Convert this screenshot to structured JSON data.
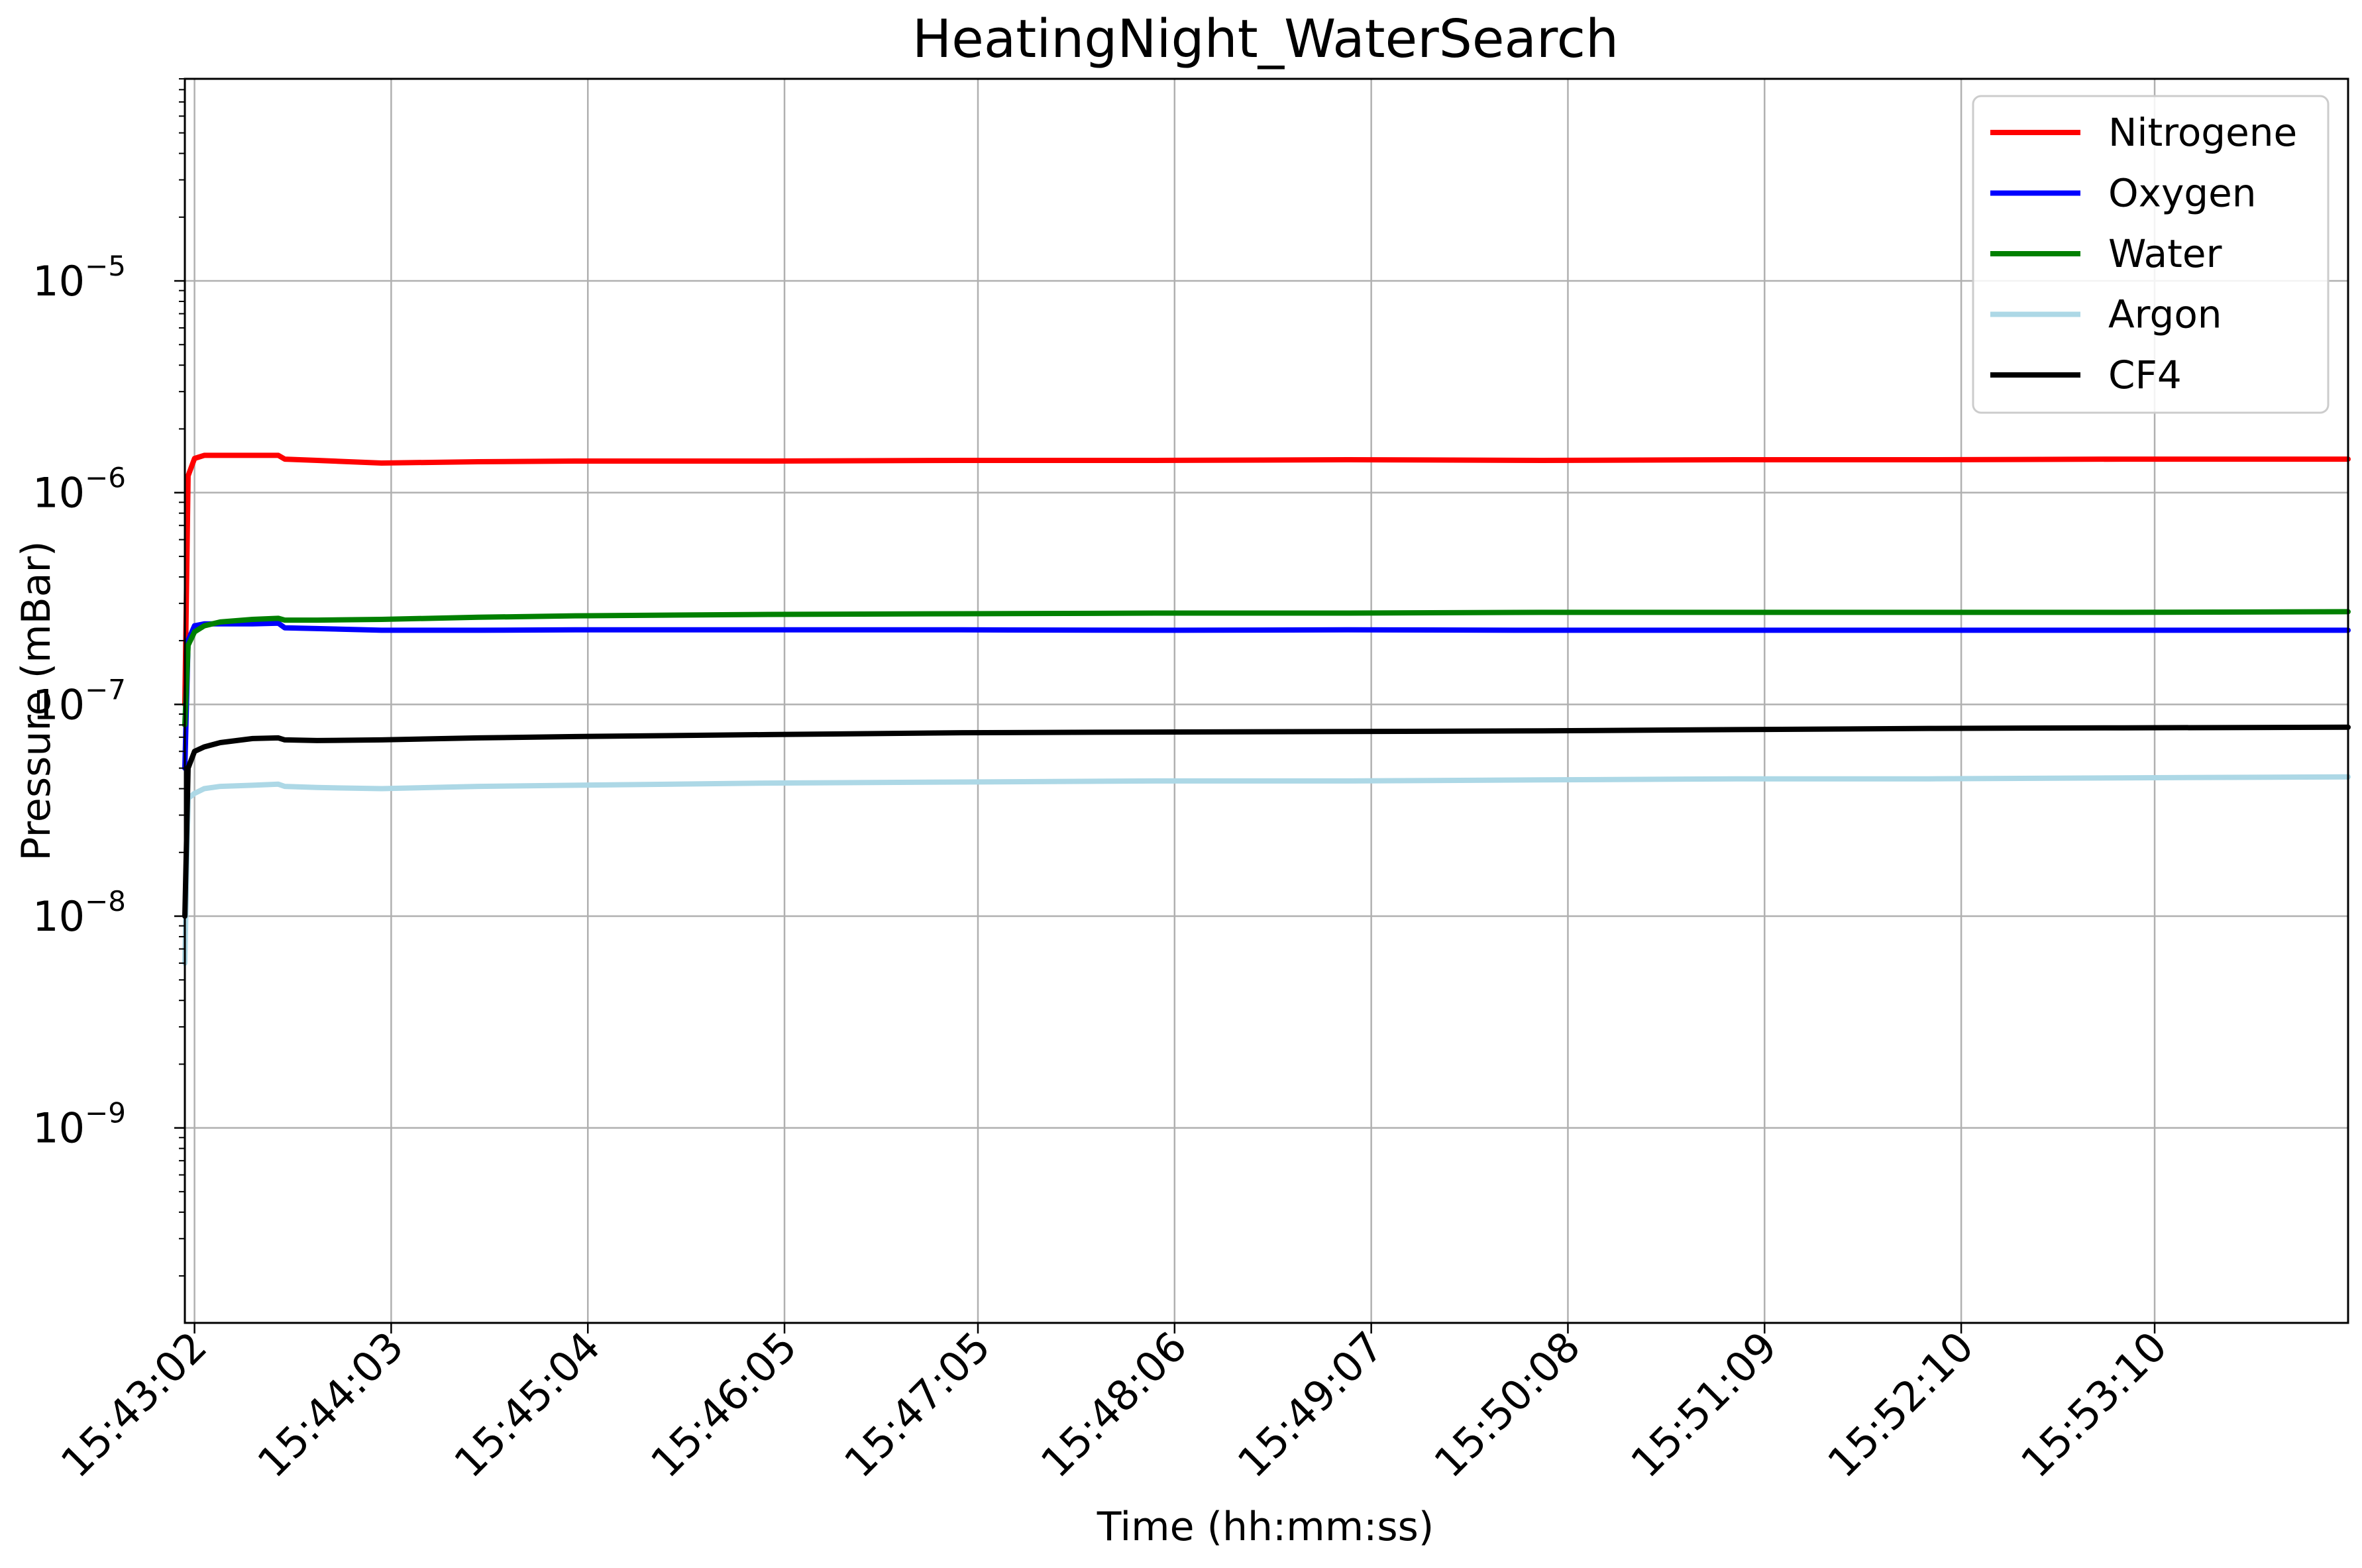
{
  "chart_data": {
    "type": "line",
    "title": "HeatingNight_WaterSearch",
    "xlabel": "Time (hh:mm:ss)",
    "ylabel": "Pressure (mBar)",
    "yscale": "log",
    "ylim": [
      1.2e-10,
      9e-05
    ],
    "xlim": [
      "15:42:59",
      "15:54:10"
    ],
    "grid": true,
    "legend_position": "top-right",
    "x_tick_labels": [
      "15:43:02",
      "15:44:03",
      "15:45:04",
      "15:46:05",
      "15:47:05",
      "15:48:06",
      "15:49:07",
      "15:50:08",
      "15:51:09",
      "15:52:10",
      "15:53:10"
    ],
    "y_ticks": [
      {
        "value": 1e-09,
        "base": "10",
        "exponent": "−9"
      },
      {
        "value": 1e-08,
        "base": "10",
        "exponent": "−8"
      },
      {
        "value": 1e-07,
        "base": "10",
        "exponent": "−7"
      },
      {
        "value": 1e-06,
        "base": "10",
        "exponent": "−6"
      },
      {
        "value": 1e-05,
        "base": "10",
        "exponent": "−5"
      }
    ],
    "x": [
      "15:42:59",
      "15:43:00",
      "15:43:02",
      "15:43:05",
      "15:43:10",
      "15:43:20",
      "15:43:28",
      "15:43:30",
      "15:43:40",
      "15:44:00",
      "15:44:30",
      "15:45:00",
      "15:46:00",
      "15:47:00",
      "15:48:00",
      "15:49:00",
      "15:50:00",
      "15:51:00",
      "15:52:00",
      "15:53:00",
      "15:54:10"
    ],
    "series": [
      {
        "name": "Nitrogene",
        "color": "#ff0000",
        "values": [
          1e-07,
          1.2e-06,
          1.45e-06,
          1.5e-06,
          1.5e-06,
          1.5e-06,
          1.5e-06,
          1.44e-06,
          1.42e-06,
          1.38e-06,
          1.4e-06,
          1.41e-06,
          1.41e-06,
          1.42e-06,
          1.42e-06,
          1.43e-06,
          1.42e-06,
          1.43e-06,
          1.43e-06,
          1.44e-06,
          1.44e-06
        ]
      },
      {
        "name": "Oxygen",
        "color": "#0000ff",
        "values": [
          5e-08,
          2e-07,
          2.35e-07,
          2.4e-07,
          2.4e-07,
          2.4e-07,
          2.42e-07,
          2.3e-07,
          2.28e-07,
          2.24e-07,
          2.24e-07,
          2.25e-07,
          2.25e-07,
          2.25e-07,
          2.24e-07,
          2.25e-07,
          2.24e-07,
          2.24e-07,
          2.24e-07,
          2.24e-07,
          2.24e-07
        ]
      },
      {
        "name": "Water",
        "color": "#008000",
        "values": [
          8e-08,
          1.9e-07,
          2.2e-07,
          2.35e-07,
          2.45e-07,
          2.52e-07,
          2.55e-07,
          2.5e-07,
          2.5e-07,
          2.52e-07,
          2.58e-07,
          2.62e-07,
          2.66e-07,
          2.68e-07,
          2.7e-07,
          2.7e-07,
          2.72e-07,
          2.72e-07,
          2.72e-07,
          2.72e-07,
          2.74e-07
        ]
      },
      {
        "name": "Argon",
        "color": "#add8e6",
        "values": [
          6e-09,
          3.6e-08,
          3.8e-08,
          4e-08,
          4.1e-08,
          4.15e-08,
          4.2e-08,
          4.1e-08,
          4.05e-08,
          4e-08,
          4.1e-08,
          4.15e-08,
          4.25e-08,
          4.3e-08,
          4.35e-08,
          4.35e-08,
          4.4e-08,
          4.45e-08,
          4.45e-08,
          4.5e-08,
          4.55e-08
        ]
      },
      {
        "name": "CF4",
        "color": "#000000",
        "values": [
          1e-08,
          5e-08,
          6e-08,
          6.3e-08,
          6.6e-08,
          6.9e-08,
          6.95e-08,
          6.8e-08,
          6.75e-08,
          6.8e-08,
          6.95e-08,
          7.05e-08,
          7.2e-08,
          7.35e-08,
          7.4e-08,
          7.45e-08,
          7.5e-08,
          7.6e-08,
          7.7e-08,
          7.75e-08,
          7.8e-08
        ]
      }
    ]
  }
}
